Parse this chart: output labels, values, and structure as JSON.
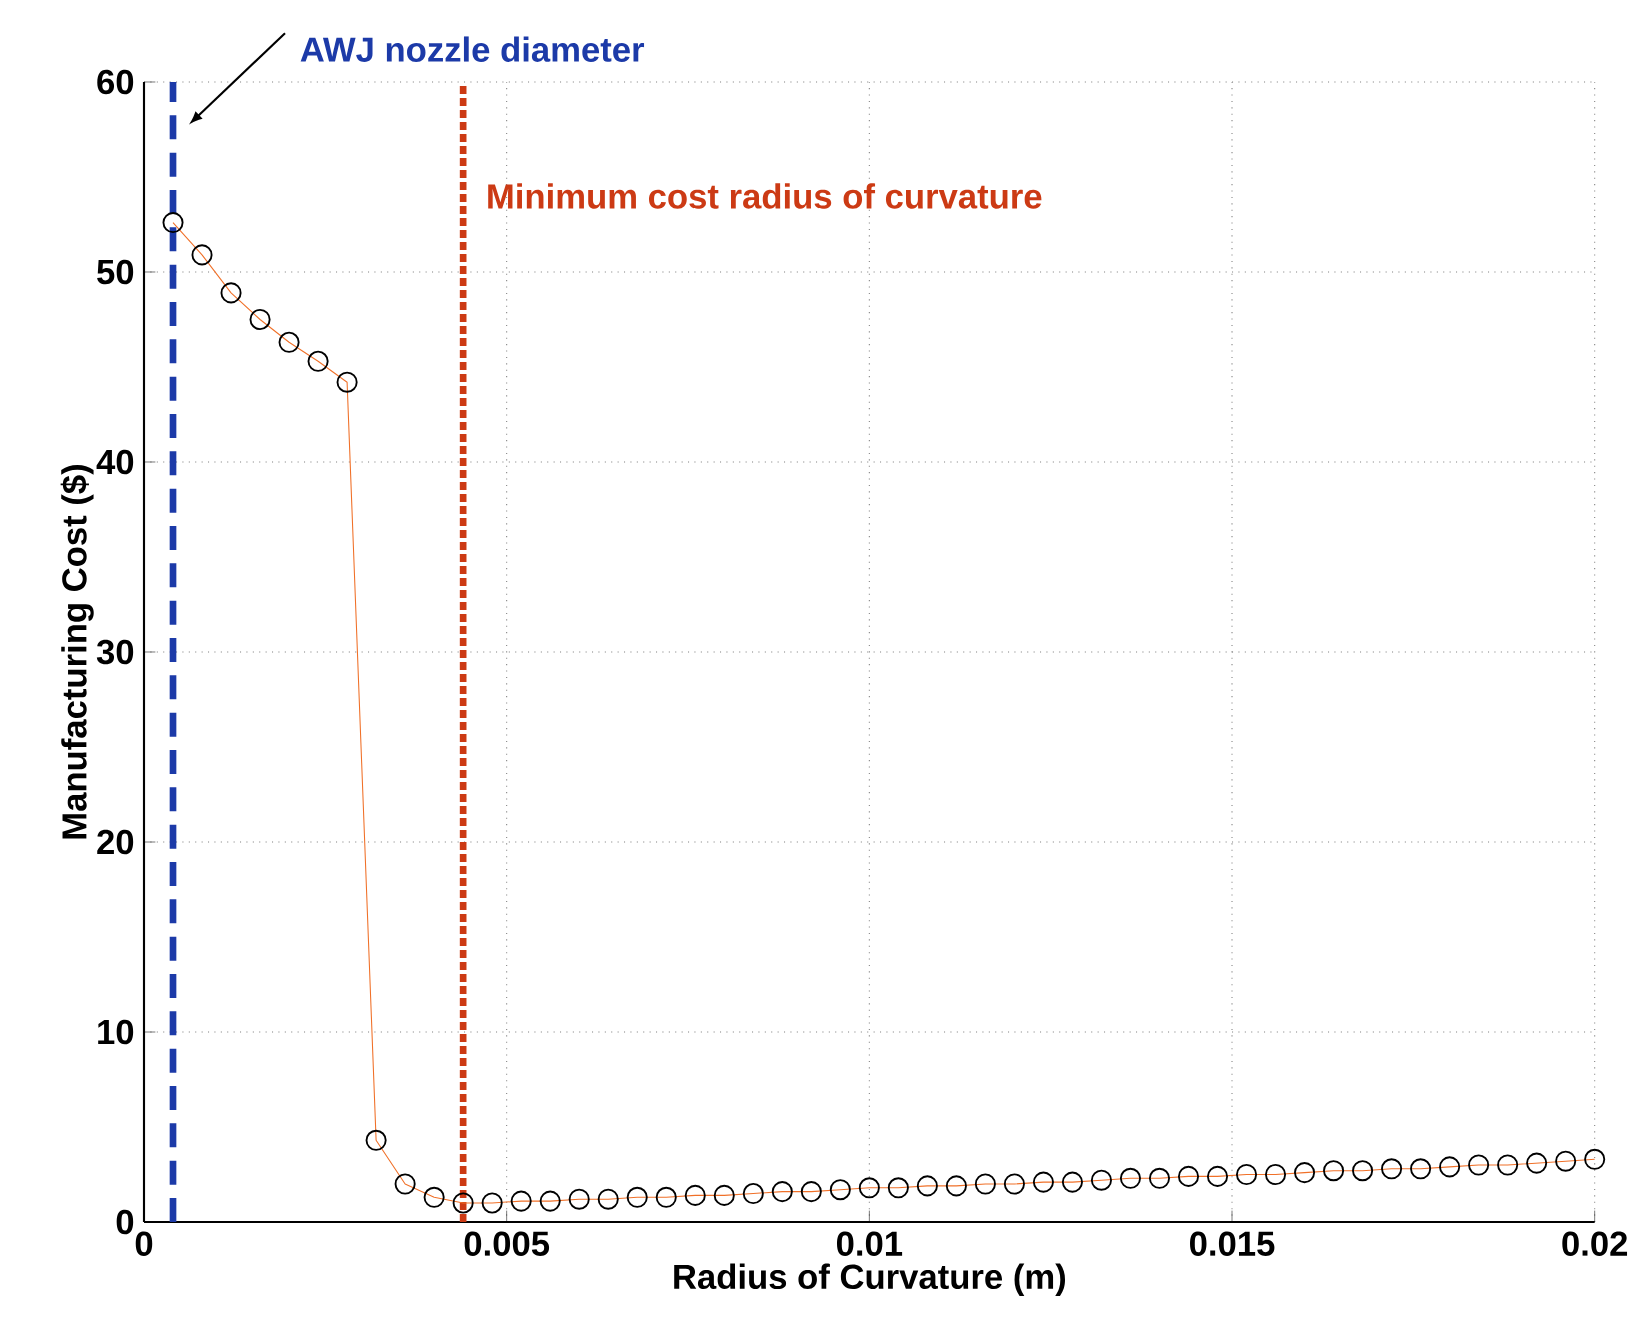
{
  "chart_data": {
    "type": "line",
    "xlabel": "Radius of Curvature (m)",
    "ylabel": "Manufacturing Cost ($)",
    "x": [
      0.0004,
      0.0008,
      0.0012,
      0.0016,
      0.002,
      0.0024,
      0.0028,
      0.0032,
      0.0036,
      0.004,
      0.0044,
      0.0048,
      0.0052,
      0.0056,
      0.006,
      0.0064,
      0.0068,
      0.0072,
      0.0076,
      0.008,
      0.0084,
      0.0088,
      0.0092,
      0.0096,
      0.01,
      0.0104,
      0.0108,
      0.0112,
      0.0116,
      0.012,
      0.0124,
      0.0128,
      0.0132,
      0.0136,
      0.014,
      0.0144,
      0.0148,
      0.0152,
      0.0156,
      0.016,
      0.0164,
      0.0168,
      0.0172,
      0.0176,
      0.018,
      0.0184,
      0.0188,
      0.0192,
      0.0196,
      0.02
    ],
    "series": [
      {
        "color": "#f07028",
        "values": [
          52.6,
          50.9,
          48.9,
          47.5,
          46.3,
          45.3,
          44.2,
          4.3,
          2.0,
          1.3,
          1.0,
          1.0,
          1.1,
          1.1,
          1.2,
          1.2,
          1.3,
          1.3,
          1.4,
          1.4,
          1.5,
          1.6,
          1.6,
          1.7,
          1.8,
          1.8,
          1.9,
          1.9,
          2.0,
          2.0,
          2.1,
          2.1,
          2.2,
          2.3,
          2.3,
          2.4,
          2.4,
          2.5,
          2.5,
          2.6,
          2.7,
          2.7,
          2.8,
          2.8,
          2.9,
          3.0,
          3.0,
          3.1,
          3.2,
          3.3
        ]
      }
    ],
    "marker": "circle",
    "xlim": [
      0,
      0.02
    ],
    "ylim": [
      0,
      60
    ],
    "xticks": [
      0,
      0.005,
      0.01,
      0.015,
      0.02
    ],
    "yticks": [
      0,
      10,
      20,
      30,
      40,
      50,
      60
    ],
    "grid": true,
    "ref_lines": [
      {
        "axis": "x",
        "value": 0.0004,
        "label": "AWJ nozzle diameter",
        "color": "#1c3aa8",
        "line_style": "dashed"
      },
      {
        "axis": "x",
        "value": 0.0044,
        "label": "Minimum cost radius of curvature",
        "color": "#cc3a14",
        "line_style": "dotted"
      }
    ]
  }
}
